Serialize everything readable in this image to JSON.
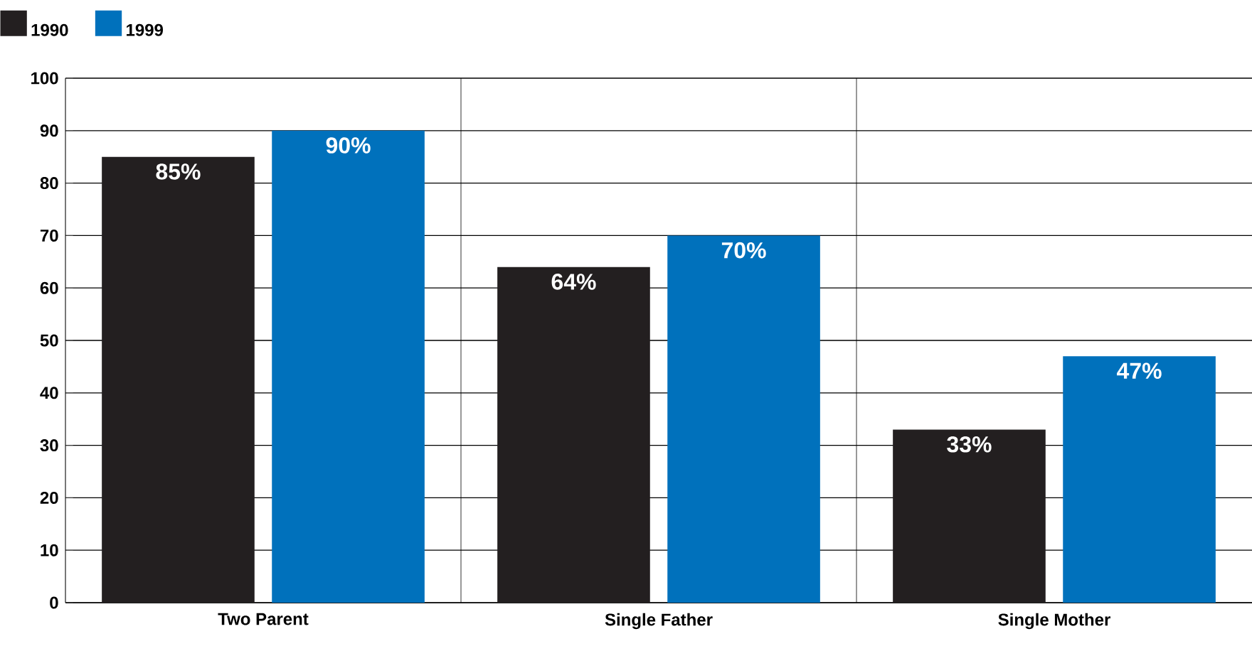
{
  "chart_data": {
    "type": "bar",
    "categories": [
      "Two Parent",
      "Single Father",
      "Single Mother"
    ],
    "series": [
      {
        "name": "1990",
        "color": "#231f20",
        "values": [
          85,
          64,
          33
        ],
        "value_labels": [
          "85%",
          "64%",
          "33%"
        ]
      },
      {
        "name": "1999",
        "color": "#0071bc",
        "values": [
          90,
          70,
          47
        ],
        "value_labels": [
          "90%",
          "70%",
          "47%"
        ]
      }
    ],
    "ylim": [
      0,
      100
    ],
    "yticks": [
      0,
      10,
      20,
      30,
      40,
      50,
      60,
      70,
      80,
      90,
      100
    ],
    "grid": true,
    "legend": "top left"
  }
}
